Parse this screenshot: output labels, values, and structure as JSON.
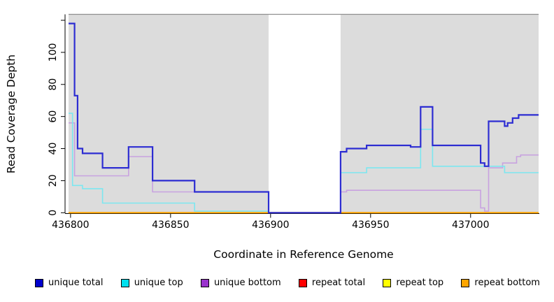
{
  "figure": {
    "panel_color": "#dcdcdc",
    "gap_color": "#ffffff",
    "top_border_color": "#8f8f8f",
    "axis_color": "#000000"
  },
  "chart_data": {
    "type": "line",
    "subtype": "step-coverage",
    "title": "",
    "xlabel": "Coordinate in Reference Genome",
    "ylabel": "Read Coverage Depth",
    "xlim": [
      436799,
      437034
    ],
    "ylim": [
      0,
      123
    ],
    "grid": "off",
    "legend_position": "bottom",
    "x_ticks": {
      "values": [
        436800,
        436850,
        436900,
        436950,
        437000
      ],
      "labels": [
        "436800",
        "436850",
        "436900",
        "436950",
        "437000"
      ]
    },
    "y_ticks": {
      "values": [
        0,
        20,
        40,
        60,
        80,
        100,
        120
      ],
      "labels": [
        "0",
        "20",
        "40",
        "60",
        "80",
        "100",
        ""
      ]
    },
    "background_regions": [
      [
        436799,
        436899
      ],
      [
        436935,
        437034
      ]
    ],
    "gap_region": [
      436899,
      436935
    ],
    "draw_order": [
      "repeat-total",
      "repeat-top",
      "repeat-bottom",
      "unique-bottom",
      "unique-top",
      "unique-total"
    ],
    "series": [
      {
        "name": "unique-total",
        "legend_label": "unique total",
        "swatch_color": "#0000cd",
        "line_color": "#2d2dd2",
        "points": [
          [
            436799,
            118
          ],
          [
            436802,
            73
          ],
          [
            436803.5,
            40
          ],
          [
            436806,
            37
          ],
          [
            436816,
            28
          ],
          [
            436829,
            41
          ],
          [
            436841,
            20
          ],
          [
            436862,
            13
          ],
          [
            436899,
            0
          ],
          [
            436935,
            38
          ],
          [
            436938,
            40
          ],
          [
            436948,
            42
          ],
          [
            436970,
            41
          ],
          [
            436975,
            66
          ],
          [
            436981,
            42
          ],
          [
            437005,
            31
          ],
          [
            437007,
            29
          ],
          [
            437009,
            57
          ],
          [
            437017,
            54
          ],
          [
            437018.5,
            56
          ],
          [
            437021,
            59
          ],
          [
            437024,
            61
          ]
        ]
      },
      {
        "name": "unique-top",
        "legend_label": "unique top",
        "swatch_color": "#00e0ee",
        "line_color": "#7ce7f0",
        "points": [
          [
            436799,
            62
          ],
          [
            436801,
            17
          ],
          [
            436806,
            15
          ],
          [
            436816,
            6
          ],
          [
            436862,
            1
          ],
          [
            436899,
            0
          ],
          [
            436935,
            25
          ],
          [
            436948,
            28
          ],
          [
            436975,
            52
          ],
          [
            436981,
            29
          ],
          [
            437017,
            25
          ]
        ]
      },
      {
        "name": "unique-bottom",
        "legend_label": "unique bottom",
        "swatch_color": "#9932cc",
        "line_color": "#c8a2e0",
        "points": [
          [
            436799,
            56
          ],
          [
            436802,
            23
          ],
          [
            436829,
            35
          ],
          [
            436841,
            13
          ],
          [
            436899,
            0
          ],
          [
            436935,
            13
          ],
          [
            436938,
            14
          ],
          [
            437005,
            3
          ],
          [
            437007,
            1
          ],
          [
            437009,
            28
          ],
          [
            437016,
            31
          ],
          [
            437023,
            35
          ],
          [
            437025,
            36
          ]
        ]
      },
      {
        "name": "repeat-total",
        "legend_label": "repeat total",
        "swatch_color": "#ff0000",
        "line_color": "#ff0000",
        "points": [
          [
            436799,
            0
          ]
        ]
      },
      {
        "name": "repeat-top",
        "legend_label": "repeat top",
        "swatch_color": "#ffff00",
        "line_color": "#ffff00",
        "points": [
          [
            436799,
            0
          ]
        ]
      },
      {
        "name": "repeat-bottom",
        "legend_label": "repeat bottom",
        "swatch_color": "#ffa500",
        "line_color": "#ffa500",
        "points": [
          [
            436799,
            0
          ]
        ]
      }
    ]
  }
}
